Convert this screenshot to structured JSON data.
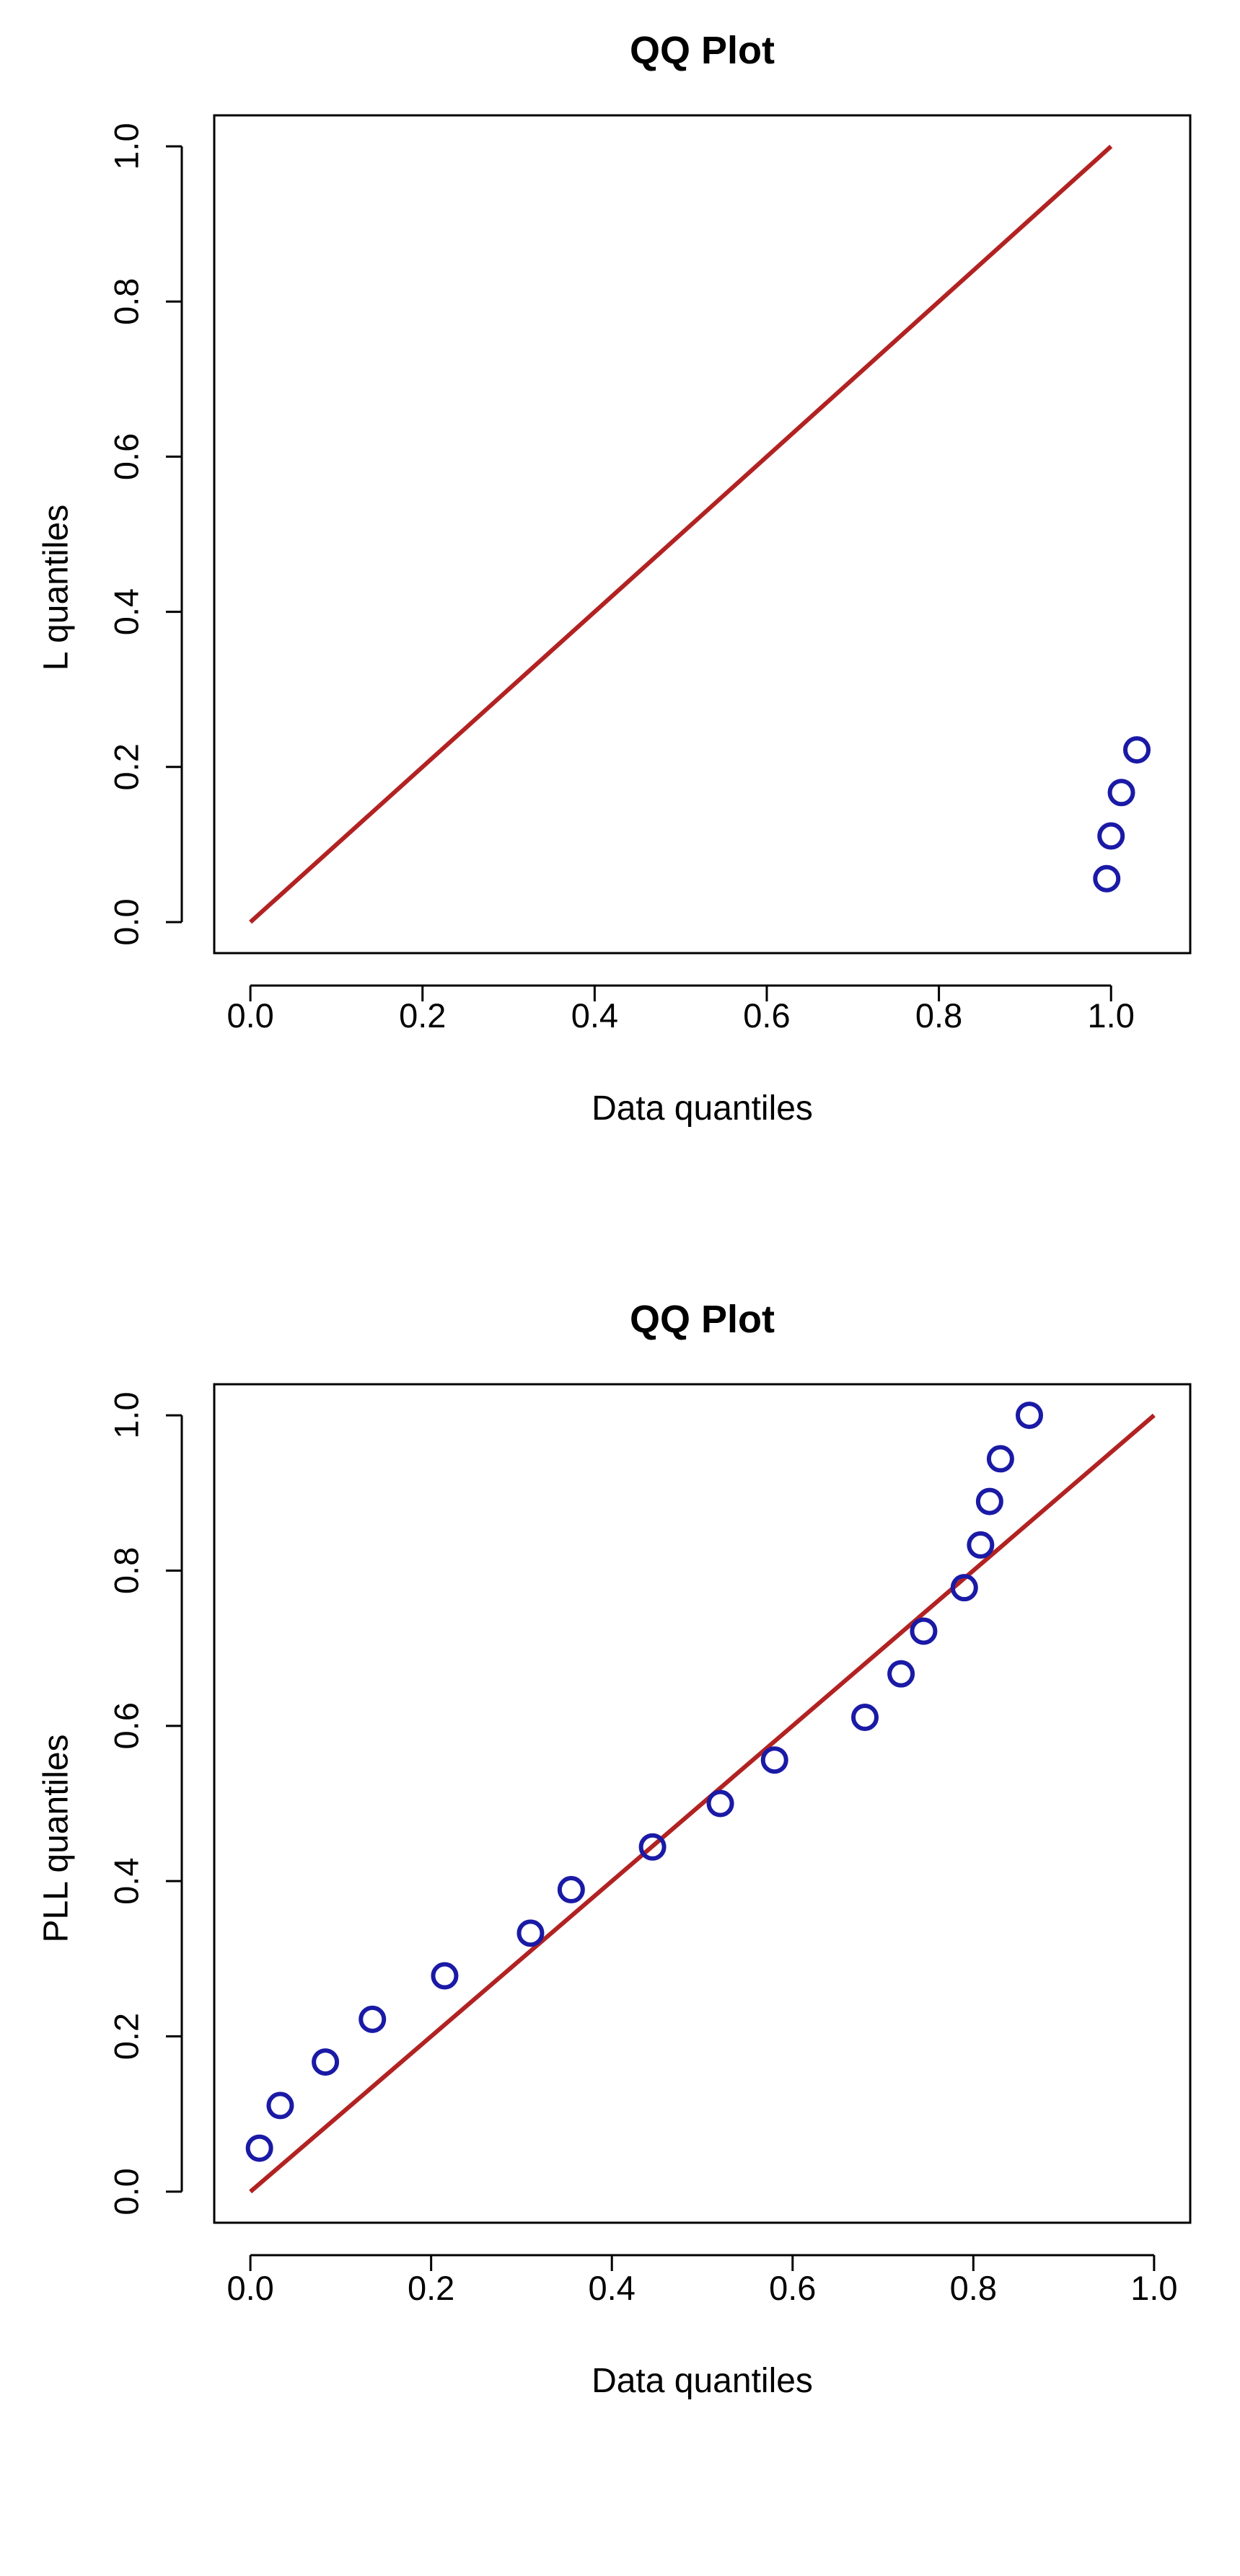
{
  "chart_data": [
    {
      "type": "scatter",
      "title": "QQ Plot",
      "xlabel": "Data quantiles",
      "ylabel": "L quantiles",
      "xlim": [
        0.0,
        1.05
      ],
      "ylim": [
        0.0,
        1.0
      ],
      "xticks": [
        "0.0",
        "0.2",
        "0.4",
        "0.6",
        "0.8",
        "1.0"
      ],
      "yticks": [
        "0.0",
        "0.2",
        "0.4",
        "0.6",
        "0.8",
        "1.0"
      ],
      "reference_line": {
        "x": [
          0.0,
          1.0
        ],
        "y": [
          0.0,
          1.0
        ],
        "color": "#b22222"
      },
      "point_color": "#1a1aa6",
      "series": [
        {
          "x": [
            0.995,
            1.0,
            1.012,
            1.03
          ],
          "y": [
            0.056,
            0.111,
            0.167,
            0.222
          ]
        }
      ],
      "grid": false
    },
    {
      "type": "scatter",
      "title": "QQ Plot",
      "xlabel": "Data quantiles",
      "ylabel": "PLL quantiles",
      "xlim": [
        0.0,
        1.0
      ],
      "ylim": [
        0.0,
        1.0
      ],
      "xticks": [
        "0.0",
        "0.2",
        "0.4",
        "0.6",
        "0.8",
        "1.0"
      ],
      "yticks": [
        "0.0",
        "0.2",
        "0.4",
        "0.6",
        "0.8",
        "1.0"
      ],
      "reference_line": {
        "x": [
          0.0,
          1.0
        ],
        "y": [
          0.0,
          1.0
        ],
        "color": "#b22222"
      },
      "point_color": "#1a1aa6",
      "series": [
        {
          "x": [
            0.01,
            0.033,
            0.083,
            0.135,
            0.215,
            0.31,
            0.355,
            0.445,
            0.52,
            0.58,
            0.68,
            0.72,
            0.745,
            0.79,
            0.808,
            0.818,
            0.83,
            0.862
          ],
          "y": [
            0.056,
            0.111,
            0.167,
            0.222,
            0.278,
            0.333,
            0.389,
            0.444,
            0.5,
            0.556,
            0.611,
            0.667,
            0.722,
            0.778,
            0.833,
            0.889,
            0.944,
            1.0
          ]
        }
      ],
      "grid": false
    }
  ]
}
